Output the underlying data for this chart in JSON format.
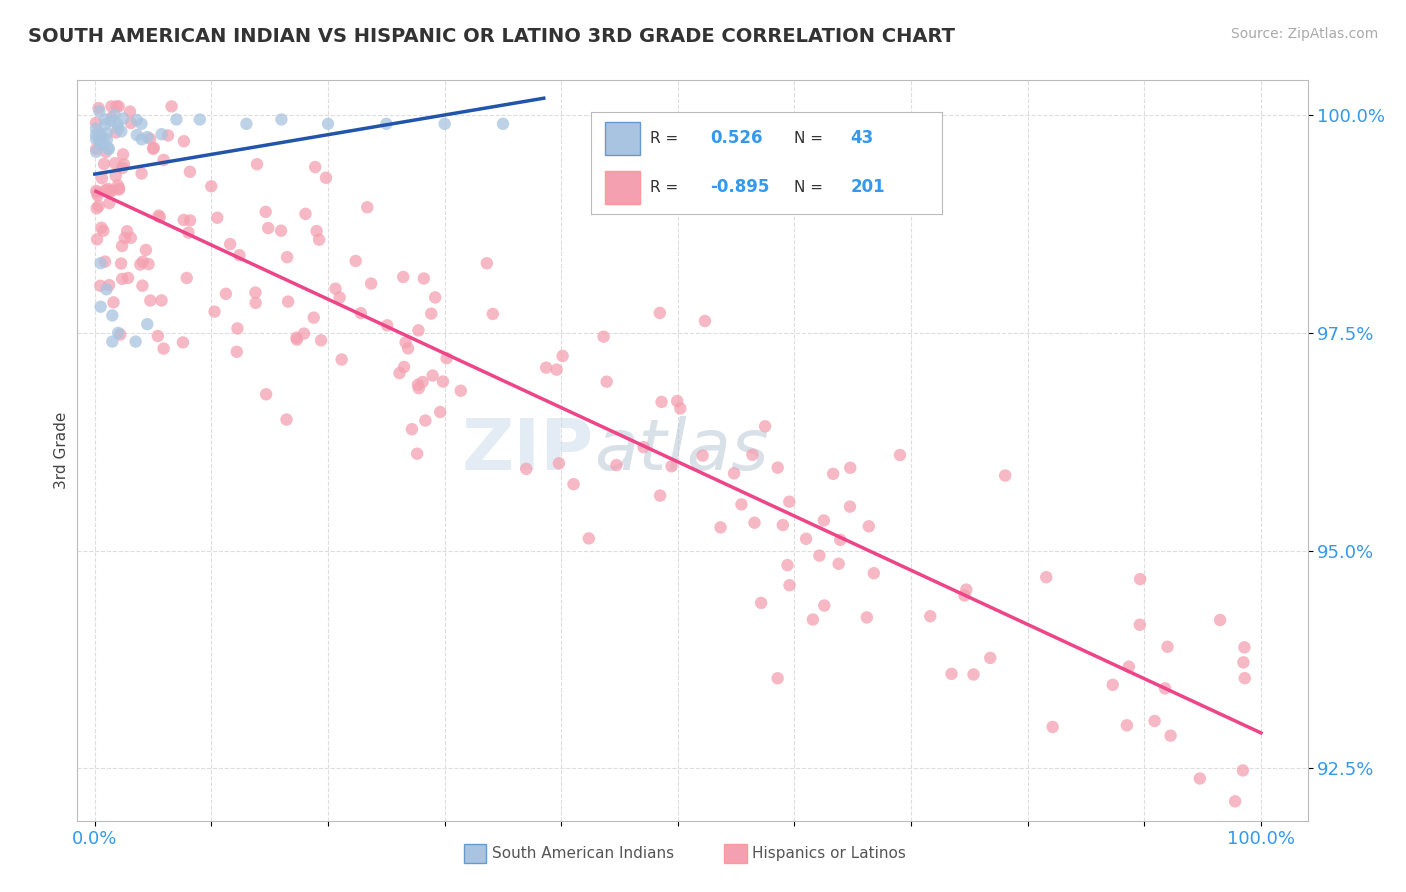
{
  "title": "SOUTH AMERICAN INDIAN VS HISPANIC OR LATINO 3RD GRADE CORRELATION CHART",
  "source_text": "Source: ZipAtlas.com",
  "ylabel": "3rd Grade",
  "blue_R": 0.526,
  "blue_N": 43,
  "pink_R": -0.895,
  "pink_N": 201,
  "blue_color": "#A8C4E0",
  "pink_color": "#F4A0B0",
  "blue_line_color": "#2255AA",
  "pink_line_color": "#EE4488",
  "bg_color": "#FFFFFF",
  "grid_color": "#CCCCCC",
  "legend_label_blue": "South American Indians",
  "legend_label_pink": "Hispanics or Latinos",
  "ylim_min": 0.919,
  "ylim_max": 1.004,
  "xlim_min": -0.015,
  "xlim_max": 1.04,
  "ytick_vals": [
    0.925,
    0.95,
    0.975,
    1.0
  ],
  "ytick_labels": [
    "92.5%",
    "95.0%",
    "97.5%",
    "100.0%"
  ],
  "xtick_vals": [
    0.0,
    0.1,
    0.2,
    0.3,
    0.4,
    0.5,
    0.6,
    0.7,
    0.8,
    0.9,
    1.0
  ],
  "xtick_labels": [
    "0.0%",
    "",
    "",
    "",
    "",
    "",
    "",
    "",
    "",
    "",
    "100.0%"
  ]
}
